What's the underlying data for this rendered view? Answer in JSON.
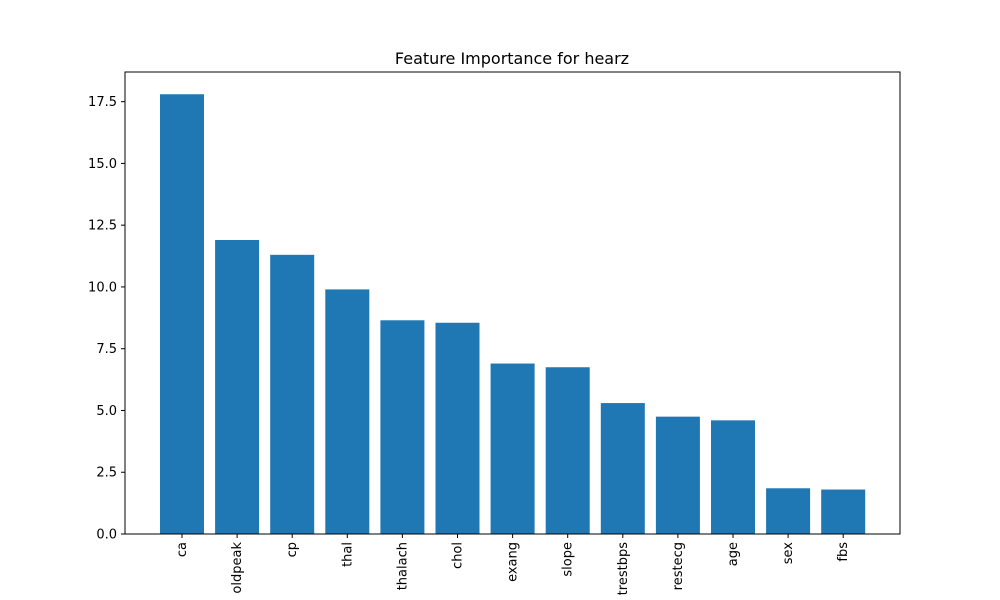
{
  "chart_data": {
    "type": "bar",
    "title": "Feature Importance for hearz",
    "xlabel": "",
    "ylabel": "",
    "categories": [
      "ca",
      "oldpeak",
      "cp",
      "thal",
      "thalach",
      "chol",
      "exang",
      "slope",
      "trestbps",
      "restecg",
      "age",
      "sex",
      "fbs"
    ],
    "values": [
      17.8,
      11.9,
      11.3,
      9.9,
      8.65,
      8.55,
      6.9,
      6.75,
      5.3,
      4.75,
      4.6,
      1.85,
      1.8
    ],
    "ylim": [
      0,
      18.7
    ],
    "yticks": [
      "0.0",
      "2.5",
      "5.0",
      "7.5",
      "10.0",
      "12.5",
      "15.0",
      "17.5"
    ],
    "grid": false,
    "bar_color": "#1f77b4"
  }
}
